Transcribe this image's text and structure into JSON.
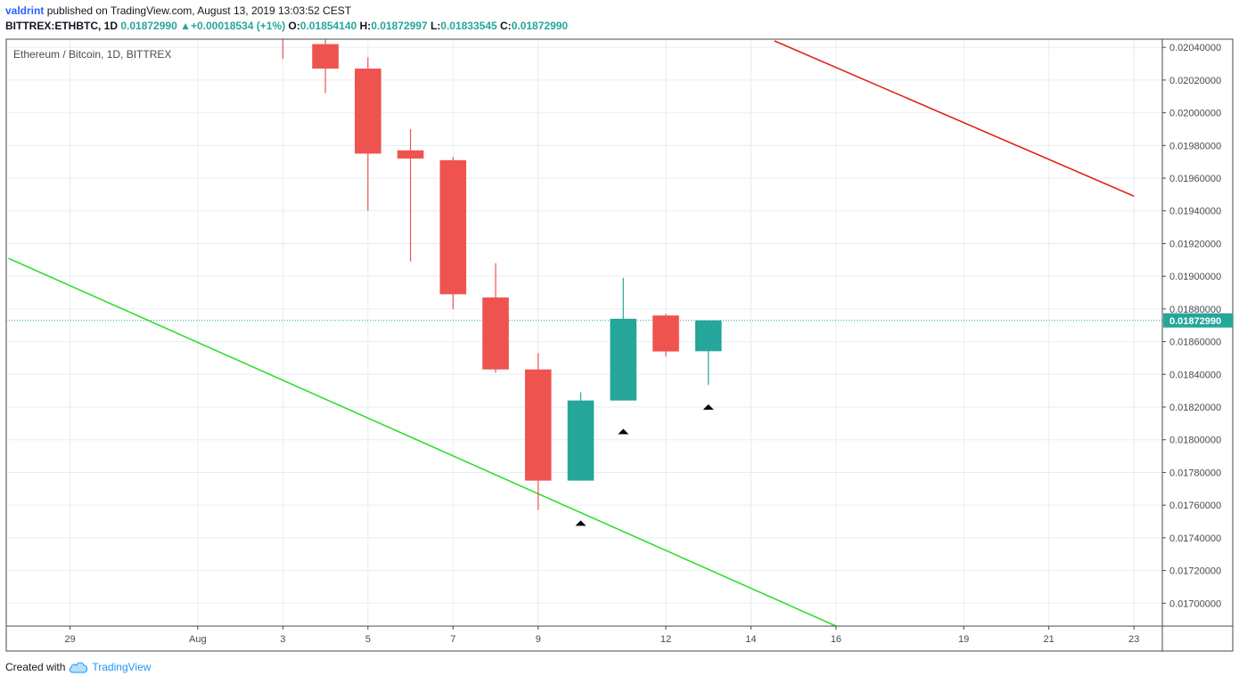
{
  "header": {
    "author": "valdrint",
    "published_text": "published on TradingView.com, August 13, 2019 13:03:52 CEST",
    "symbol": "BITTREX:ETHBTC, 1D",
    "last": "0.01872990",
    "change_arrow": "▲",
    "change": "+0.00018534 (+1%)",
    "o_label": "O:",
    "o": "0.01854140",
    "h_label": "H:",
    "h": "0.01872997",
    "l_label": "L:",
    "l": "0.01833545",
    "c_label": "C:",
    "c": "0.01872990"
  },
  "footer": {
    "created_with": "Created with",
    "brand": "TradingView",
    "logo_icon": "tradingview-cloud-icon"
  },
  "colors": {
    "up": "#26a69a",
    "down": "#ef5350",
    "support_line": "#33dd33",
    "resistance_line": "#e0221b",
    "grid": "#e6eef3",
    "price_line": "#26a69a"
  },
  "chart_data": {
    "type": "candlestick",
    "title": "Ethereum / Bitcoin, 1D, BITTREX",
    "ylim": [
      0.01686,
      0.02045
    ],
    "x_range": [
      "2019-07-28",
      "2019-08-23"
    ],
    "y_ticks": [
      "0.01700000",
      "0.01720000",
      "0.01740000",
      "0.01760000",
      "0.01780000",
      "0.01800000",
      "0.01820000",
      "0.01840000",
      "0.01860000",
      "0.01880000",
      "0.01900000",
      "0.01920000",
      "0.01940000",
      "0.01960000",
      "0.01980000",
      "0.02000000",
      "0.02020000",
      "0.02040000"
    ],
    "x_ticks": [
      {
        "date": "2019-07-29",
        "label": "29"
      },
      {
        "date": "2019-08-01",
        "label": "Aug"
      },
      {
        "date": "2019-08-03",
        "label": "3"
      },
      {
        "date": "2019-08-05",
        "label": "5"
      },
      {
        "date": "2019-08-07",
        "label": "7"
      },
      {
        "date": "2019-08-09",
        "label": "9"
      },
      {
        "date": "2019-08-12",
        "label": "12"
      },
      {
        "date": "2019-08-14",
        "label": "14"
      },
      {
        "date": "2019-08-16",
        "label": "16"
      },
      {
        "date": "2019-08-19",
        "label": "19"
      },
      {
        "date": "2019-08-21",
        "label": "21"
      },
      {
        "date": "2019-08-23",
        "label": "23"
      }
    ],
    "candles": [
      {
        "date": "2019-08-03",
        "open": 0.0206,
        "high": 0.0207,
        "low": 0.02033,
        "close": 0.0205
      },
      {
        "date": "2019-08-04",
        "open": 0.02042,
        "high": 0.02048,
        "low": 0.02012,
        "close": 0.02027
      },
      {
        "date": "2019-08-05",
        "open": 0.02027,
        "high": 0.02034,
        "low": 0.0194,
        "close": 0.01975
      },
      {
        "date": "2019-08-06",
        "open": 0.01977,
        "high": 0.0199,
        "low": 0.01909,
        "close": 0.01972
      },
      {
        "date": "2019-08-07",
        "open": 0.01971,
        "high": 0.01973,
        "low": 0.0188,
        "close": 0.01889
      },
      {
        "date": "2019-08-08",
        "open": 0.01887,
        "high": 0.01908,
        "low": 0.01841,
        "close": 0.01843
      },
      {
        "date": "2019-08-09",
        "open": 0.01843,
        "high": 0.01853,
        "low": 0.01757,
        "close": 0.01775
      },
      {
        "date": "2019-08-10",
        "open": 0.01775,
        "high": 0.01829,
        "low": 0.01775,
        "close": 0.01824
      },
      {
        "date": "2019-08-11",
        "open": 0.01824,
        "high": 0.01899,
        "low": 0.01824,
        "close": 0.01874
      },
      {
        "date": "2019-08-12",
        "open": 0.01876,
        "high": 0.01877,
        "low": 0.01851,
        "close": 0.01854
      },
      {
        "date": "2019-08-13",
        "open": 0.0185414,
        "high": 0.01872997,
        "low": 0.01833545,
        "close": 0.0187299
      }
    ],
    "markers": [
      {
        "date": "2019-08-10",
        "value": 0.01749
      },
      {
        "date": "2019-08-11",
        "value": 0.01805
      },
      {
        "date": "2019-08-13",
        "value": 0.0182
      }
    ],
    "trendlines": [
      {
        "name": "support",
        "color": "#33dd33",
        "start": {
          "date": "2019-07-28",
          "value": 0.01911
        },
        "end": {
          "date": "2019-08-16",
          "value": 0.01686
        }
      },
      {
        "name": "resistance",
        "color": "#e0221b",
        "start": {
          "date": "2019-08-15",
          "value": 0.02044
        },
        "end": {
          "date": "2019-08-23",
          "value": 0.01949
        }
      }
    ],
    "last_price": 0.0187299,
    "last_price_label": "0.01872990"
  }
}
